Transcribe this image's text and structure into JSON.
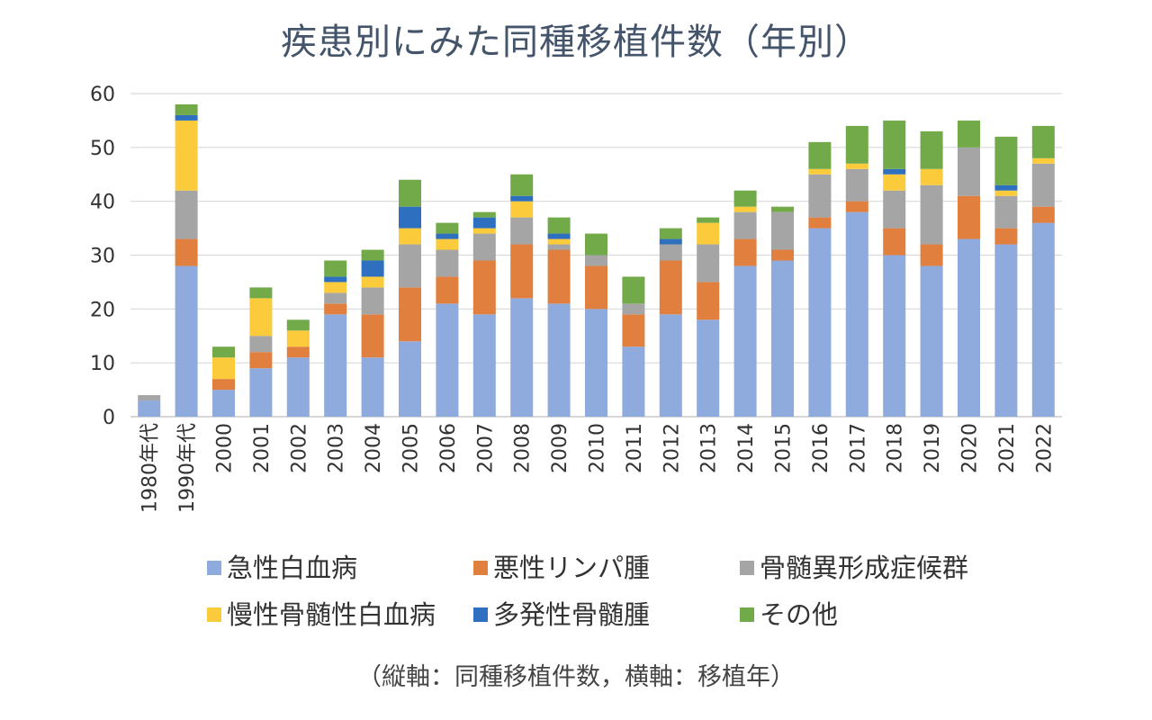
{
  "chart_data": {
    "type": "bar",
    "stacked": true,
    "title": "疾患別にみた同種移植件数（年別）",
    "caption": "（縦軸：同種移植件数，横軸：移植年）",
    "categories": [
      "1980年代",
      "1990年代",
      "2000",
      "2001",
      "2002",
      "2003",
      "2004",
      "2005",
      "2006",
      "2007",
      "2008",
      "2009",
      "2010",
      "2011",
      "2012",
      "2013",
      "2014",
      "2015",
      "2016",
      "2017",
      "2018",
      "2019",
      "2020",
      "2021",
      "2022"
    ],
    "ylim": [
      0,
      60
    ],
    "yticks": [
      0,
      10,
      20,
      30,
      40,
      50,
      60
    ],
    "grid": true,
    "legend_position": "bottom",
    "series": [
      {
        "name": "急性白血病",
        "color": "#8faadc",
        "values": [
          3,
          28,
          5,
          9,
          11,
          19,
          11,
          14,
          21,
          19,
          22,
          21,
          20,
          13,
          19,
          18,
          28,
          29,
          35,
          38,
          30,
          28,
          33,
          32,
          36
        ]
      },
      {
        "name": "悪性リンパ腫",
        "color": "#e07f3e",
        "values": [
          0,
          5,
          2,
          3,
          2,
          2,
          8,
          10,
          5,
          10,
          10,
          10,
          8,
          6,
          10,
          7,
          5,
          2,
          2,
          2,
          5,
          4,
          8,
          3,
          3
        ]
      },
      {
        "name": "骨髄異形成症候群",
        "color": "#a5a5a5",
        "values": [
          1,
          9,
          0,
          3,
          0,
          2,
          5,
          8,
          5,
          5,
          5,
          1,
          2,
          2,
          3,
          7,
          5,
          7,
          8,
          6,
          7,
          11,
          9,
          6,
          8
        ]
      },
      {
        "name": "慢性骨髄性白血病",
        "color": "#fbcb3c",
        "values": [
          0,
          13,
          4,
          7,
          3,
          2,
          2,
          3,
          2,
          1,
          3,
          1,
          0,
          0,
          0,
          4,
          1,
          0,
          1,
          1,
          3,
          3,
          0,
          1,
          1
        ]
      },
      {
        "name": "多発性骨髄腫",
        "color": "#2e6fc0",
        "values": [
          0,
          1,
          0,
          0,
          0,
          1,
          3,
          4,
          1,
          2,
          1,
          1,
          0,
          0,
          1,
          0,
          0,
          0,
          0,
          0,
          1,
          0,
          0,
          1,
          0
        ]
      },
      {
        "name": "その他",
        "color": "#72aa4a",
        "values": [
          0,
          2,
          2,
          2,
          2,
          3,
          2,
          5,
          2,
          1,
          4,
          3,
          4,
          5,
          2,
          1,
          3,
          1,
          5,
          7,
          9,
          7,
          5,
          9,
          6
        ]
      }
    ]
  }
}
